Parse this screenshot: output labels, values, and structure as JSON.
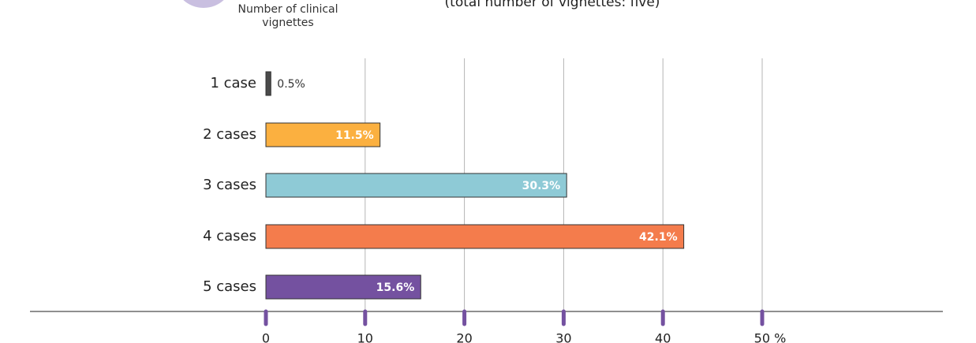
{
  "chart_data": {
    "type": "bar",
    "orientation": "horizontal",
    "subtitle": "(total number of vignettes: five)",
    "y_label": "Number of clinical vignettes",
    "categories": [
      "1 case",
      "2 cases",
      "3 cases",
      "4 cases",
      "5 cases"
    ],
    "values": [
      0.5,
      11.5,
      30.3,
      42.1,
      15.6
    ],
    "value_labels": [
      "0.5%",
      "11.5%",
      "30.3%",
      "42.1%",
      "15.6%"
    ],
    "colors": [
      "#4a4a4a",
      "#fbb040",
      "#8ecad6",
      "#f47c4c",
      "#7451a0"
    ],
    "xlim": [
      0,
      50
    ],
    "xticks": [
      0,
      10,
      20,
      30,
      40,
      {
        "value": 50,
        "label": "50 %"
      }
    ],
    "grid": true
  }
}
